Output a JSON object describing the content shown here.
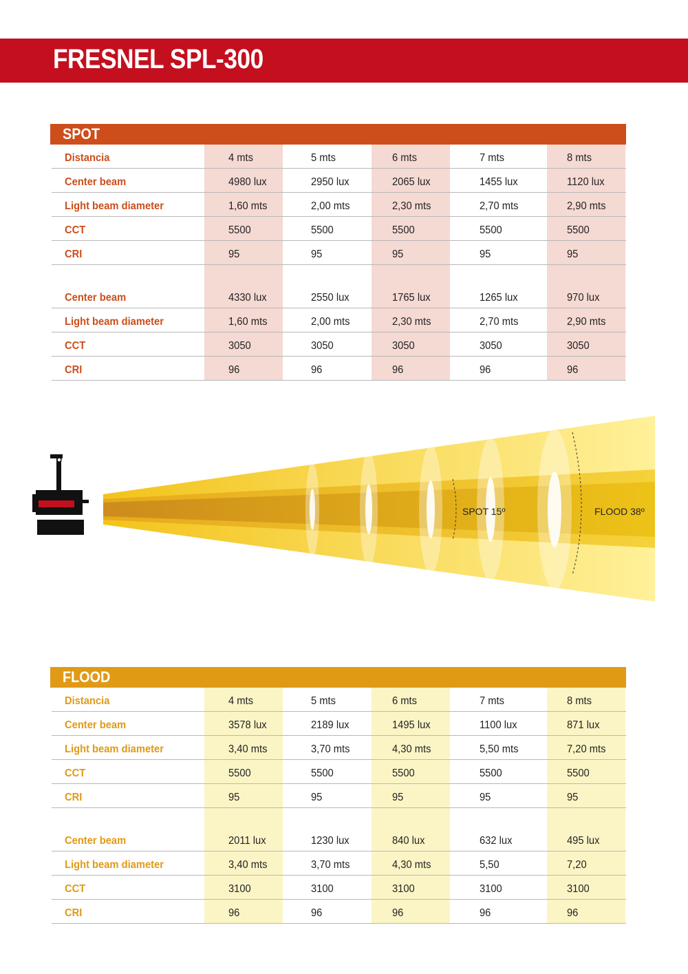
{
  "header": {
    "title": "FRESNEL SPL-300"
  },
  "spot": {
    "title": "SPOT",
    "rows": [
      {
        "label": "Distancia",
        "values": [
          "4 mts",
          "5 mts",
          "6 mts",
          "7 mts",
          "8 mts"
        ]
      },
      {
        "label": "Center beam",
        "values": [
          "4980 lux",
          "2950 lux",
          "2065 lux",
          "1455 lux",
          "1120 lux"
        ]
      },
      {
        "label": "Light beam diameter",
        "values": [
          "1,60 mts",
          "2,00 mts",
          "2,30 mts",
          "2,70 mts",
          "2,90 mts"
        ]
      },
      {
        "label": "CCT",
        "values": [
          "5500",
          "5500",
          "5500",
          "5500",
          "5500"
        ]
      },
      {
        "label": "CRI",
        "values": [
          "95",
          "95",
          "95",
          "95",
          "95"
        ]
      },
      {
        "label": "Center beam",
        "values": [
          "4330 lux",
          "2550 lux",
          "1765 lux",
          "1265 lux",
          "970 lux"
        ]
      },
      {
        "label": "Light beam diameter",
        "values": [
          "1,60 mts",
          "2,00 mts",
          "2,30 mts",
          "2,70 mts",
          "2,90 mts"
        ]
      },
      {
        "label": "CCT",
        "values": [
          "3050",
          "3050",
          "3050",
          "3050",
          "3050"
        ]
      },
      {
        "label": "CRI",
        "values": [
          "96",
          "96",
          "96",
          "96",
          "96"
        ]
      }
    ]
  },
  "flood": {
    "title": "FLOOD",
    "rows": [
      {
        "label": "Distancia",
        "values": [
          "4 mts",
          "5 mts",
          "6 mts",
          "7 mts",
          "8 mts"
        ]
      },
      {
        "label": "Center beam",
        "values": [
          "3578 lux",
          "2189 lux",
          "1495 lux",
          "1100 lux",
          "871 lux"
        ]
      },
      {
        "label": "Light beam diameter",
        "values": [
          "3,40 mts",
          "3,70 mts",
          "4,30 mts",
          "5,50 mts",
          "7,20 mts"
        ]
      },
      {
        "label": "CCT",
        "values": [
          "5500",
          "5500",
          "5500",
          "5500",
          "5500"
        ]
      },
      {
        "label": "CRI",
        "values": [
          "95",
          "95",
          "95",
          "95",
          "95"
        ]
      },
      {
        "label": "Center beam",
        "values": [
          "2011 lux",
          "1230 lux",
          "840 lux",
          "632 lux",
          "495 lux"
        ]
      },
      {
        "label": "Light beam diameter",
        "values": [
          "3,40 mts",
          "3,70 mts",
          "4,30 mts",
          "5,50",
          "7,20"
        ]
      },
      {
        "label": "CCT",
        "values": [
          "3100",
          "3100",
          "3100",
          "3100",
          "3100"
        ]
      },
      {
        "label": "CRI",
        "values": [
          "96",
          "96",
          "96",
          "96",
          "96"
        ]
      }
    ]
  },
  "diagram": {
    "spot_label": "SPOT 15º",
    "flood_label": "FLOOD 38º"
  },
  "colors": {
    "title_bar": "#c30f1e",
    "spot_accent": "#cd4e1b",
    "flood_accent": "#e09a16"
  }
}
